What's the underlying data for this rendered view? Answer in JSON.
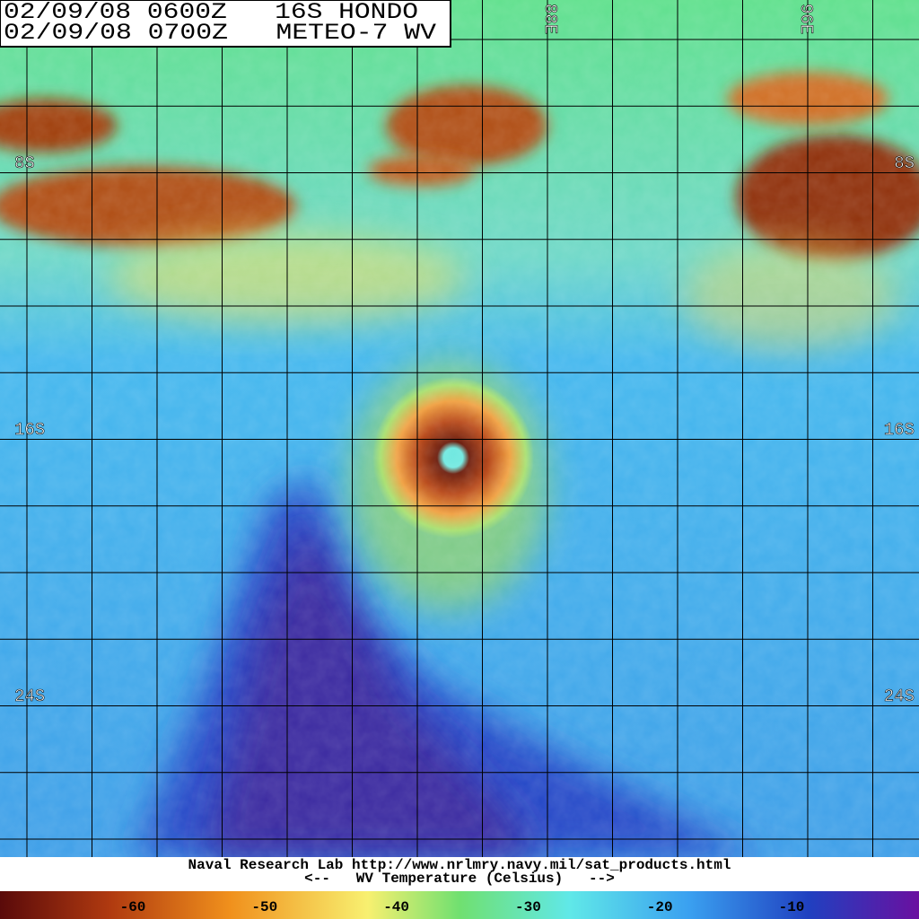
{
  "header": {
    "line1": "02/09/08 0600Z   16S HONDO",
    "line2": "02/09/08 0700Z   METEO-7 WV"
  },
  "grid_labels": {
    "left": [
      "8S",
      "16S",
      "24S"
    ],
    "right": [
      "8S",
      "16S",
      "24S"
    ],
    "top": [
      "88E",
      "96E"
    ]
  },
  "footer": {
    "credit": "Naval Research Lab http://www.nrlmry.navy.mil/sat_products.html",
    "legend": "<--   WV Temperature (Celsius)   -->"
  },
  "colorbar": {
    "ticks": [
      -60,
      -50,
      -40,
      -30,
      -20,
      -10
    ]
  }
}
